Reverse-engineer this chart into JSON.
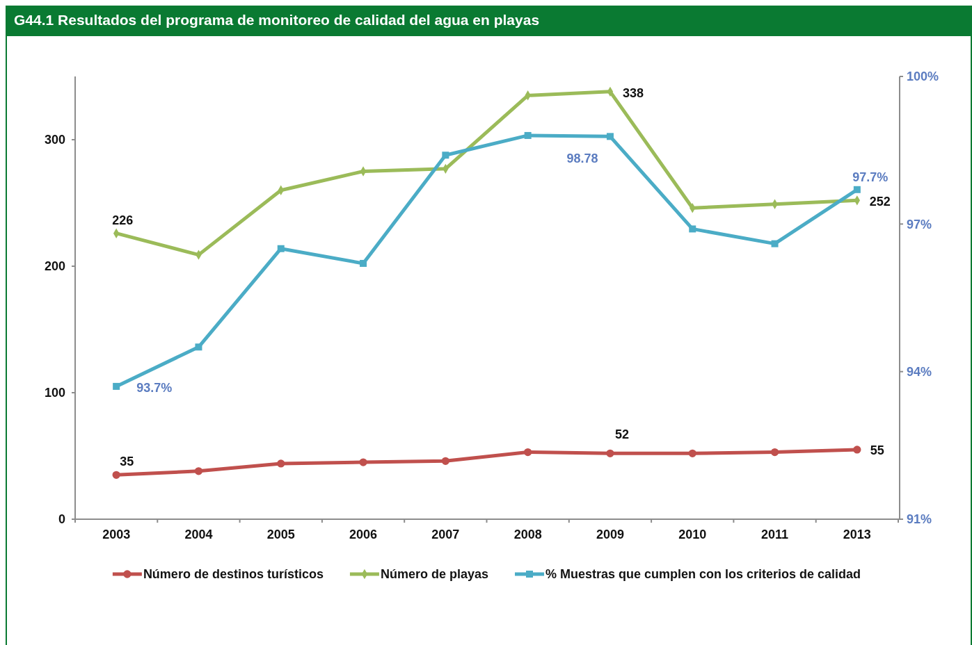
{
  "chart_data": {
    "type": "line",
    "title": "G44.1 Resultados del programa de monitoreo de calidad del agua en playas",
    "categories": [
      "2003",
      "2004",
      "2005",
      "2006",
      "2007",
      "2008",
      "2009",
      "2010",
      "2011",
      "2013"
    ],
    "series": [
      {
        "name": "Número de destinos turísticos",
        "color": "#c0504d",
        "marker": "circle",
        "values": [
          35,
          38,
          44,
          45,
          46,
          53,
          52,
          52,
          53,
          55
        ],
        "value_labels": [
          "35",
          null,
          null,
          null,
          null,
          null,
          "52",
          null,
          null,
          "55"
        ]
      },
      {
        "name": "Número de playas",
        "color": "#9bbb59",
        "marker": "diamond",
        "values": [
          226,
          209,
          260,
          275,
          277,
          335,
          338,
          246,
          249,
          252
        ],
        "value_labels": [
          "226",
          null,
          null,
          null,
          null,
          null,
          "338",
          null,
          null,
          "252"
        ]
      },
      {
        "name": "% Muestras que cumplen con los criterios de calidad",
        "color": "#4bacc6",
        "marker": "square",
        "axis": "y2",
        "values": [
          93.7,
          94.5,
          96.5,
          96.2,
          98.4,
          98.8,
          98.78,
          96.9,
          96.6,
          97.7
        ],
        "value_labels": [
          "93.7%",
          null,
          null,
          null,
          null,
          null,
          "98.78",
          null,
          null,
          "97.7%"
        ]
      }
    ],
    "ylim": [
      0,
      350
    ],
    "yticks": [
      0,
      100,
      200,
      300
    ],
    "y2lim": [
      91,
      100
    ],
    "y2ticks": [
      {
        "value": 91,
        "label": "91%"
      },
      {
        "value": 94,
        "label": "94%"
      },
      {
        "value": 97,
        "label": "97%"
      },
      {
        "value": 100,
        "label": "100%"
      }
    ],
    "legend": "bottom",
    "line_style": "solid"
  }
}
